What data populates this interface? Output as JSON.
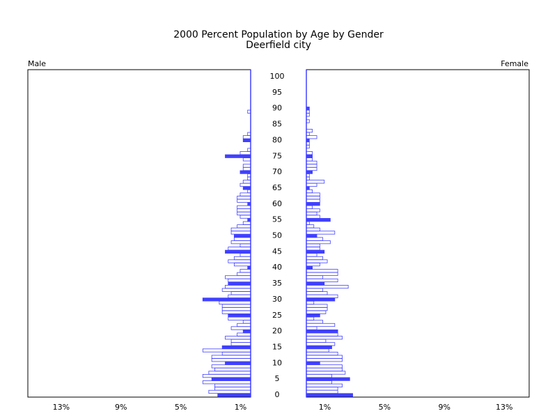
{
  "chart_data": {
    "type": "pyramid",
    "title": "2000 Percent Population by Age by Gender",
    "subtitle": "Deerfield city",
    "categories": [
      "0",
      null,
      null,
      null,
      null,
      "5",
      null,
      null,
      null,
      null,
      "10",
      null,
      null,
      null,
      null,
      "15",
      null,
      null,
      null,
      null,
      "20",
      null,
      null,
      null,
      null,
      "25",
      null,
      null,
      null,
      null,
      "30",
      null,
      null,
      null,
      null,
      "35",
      null,
      null,
      null,
      null,
      "40",
      null,
      null,
      null,
      null,
      "45",
      null,
      null,
      null,
      null,
      "50",
      null,
      null,
      null,
      null,
      "55",
      null,
      null,
      null,
      null,
      "60",
      null,
      null,
      null,
      null,
      "65",
      null,
      null,
      null,
      null,
      "70",
      null,
      null,
      null,
      null,
      "75",
      null,
      null,
      null,
      null,
      "80",
      null,
      null,
      null,
      null,
      "85",
      null,
      null,
      null,
      null,
      "90",
      null,
      null,
      null,
      null,
      "95",
      null,
      null,
      null,
      null,
      "100"
    ],
    "series": [
      {
        "name": "Male",
        "color": "#4040ff",
        "values": [
          2.2,
          2.8,
          2.4,
          2.4,
          3.2,
          2.6,
          3.2,
          2.8,
          2.4,
          2.6,
          1.7,
          2.6,
          2.6,
          1.9,
          3.2,
          1.9,
          1.3,
          1.3,
          1.7,
          0.9,
          0.5,
          1.3,
          0.9,
          0.5,
          1.5,
          1.5,
          1.9,
          1.9,
          1.9,
          2.1,
          3.2,
          1.5,
          1.3,
          1.9,
          1.7,
          1.5,
          1.5,
          1.7,
          0.9,
          0.7,
          0.2,
          1.1,
          1.5,
          1.1,
          0.7,
          1.7,
          1.5,
          0.7,
          1.3,
          1.1,
          1.1,
          1.3,
          1.3,
          0.9,
          0.5,
          0.2,
          0.7,
          0.9,
          0.9,
          0.9,
          0.2,
          0.9,
          0.9,
          0.7,
          0.2,
          0.5,
          0.7,
          0.5,
          0.2,
          0.2,
          0.7,
          0.5,
          0.5,
          0,
          0.5,
          1.7,
          0.7,
          0.2,
          0,
          0,
          0.5,
          0.5,
          0.2,
          0,
          0,
          0,
          0,
          0,
          0,
          0.2,
          0,
          0,
          0,
          0,
          0,
          0,
          0,
          0,
          0,
          0,
          0
        ]
      },
      {
        "name": "Female",
        "color": "#4040ff",
        "values": [
          3.1,
          2.1,
          2.1,
          2.4,
          1.7,
          2.9,
          1.7,
          2.6,
          2.4,
          2.4,
          0.9,
          2.4,
          2.4,
          2.1,
          1.5,
          1.7,
          1.9,
          1.3,
          2.4,
          2.1,
          2.1,
          0.7,
          1.9,
          1.1,
          0.5,
          0.9,
          1.3,
          1.4,
          1.4,
          0.5,
          1.9,
          2.1,
          1.4,
          1.1,
          2.8,
          1.2,
          2.1,
          1.1,
          2.1,
          2.1,
          0.4,
          0.9,
          1.4,
          1.1,
          0.7,
          1.2,
          0.9,
          0.9,
          1.6,
          1.1,
          0.7,
          1.9,
          0.9,
          0.5,
          0.2,
          1.6,
          0.9,
          0.7,
          0.9,
          0.4,
          0.9,
          0.9,
          0.9,
          0.9,
          0.4,
          0.2,
          0.7,
          1.2,
          0.2,
          0.2,
          0.4,
          0.7,
          0.7,
          0.7,
          0.4,
          0.4,
          0.4,
          0,
          0.2,
          0.2,
          0.2,
          0.7,
          0.2,
          0.4,
          0,
          0,
          0.2,
          0,
          0.2,
          0.2,
          0.2,
          0,
          0,
          0,
          0,
          0,
          0,
          0,
          0,
          0,
          0
        ]
      }
    ],
    "xlim": [
      0,
      14.9
    ],
    "xticks": [
      {
        "value": 1,
        "label": "1%"
      },
      {
        "value": 5,
        "label": "5%"
      },
      {
        "value": 9,
        "label": "9%"
      },
      {
        "value": 13,
        "label": "13%"
      }
    ]
  }
}
